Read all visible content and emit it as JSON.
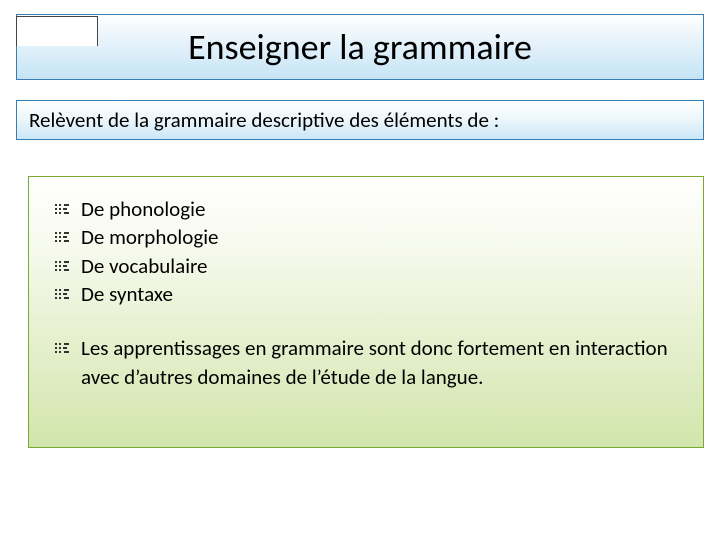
{
  "colors": {
    "title_gradient_top": "#ffffff",
    "title_gradient_bottom": "#c5e4f5",
    "title_border": "#3a7db0",
    "subtitle_gradient_top": "#ffffff",
    "subtitle_gradient_bottom": "#cbe7f6",
    "subtitle_border": "#3a7db0",
    "content_gradient_top": "#ffffff",
    "content_gradient_bottom": "#d2e5ac",
    "content_border": "#7aa833",
    "text": "#000000",
    "slide_bg": "#ffffff"
  },
  "typography": {
    "family": "Calibri",
    "title_size_pt": 28,
    "subtitle_size_pt": 16,
    "body_size_pt": 16
  },
  "layout": {
    "slide_width": 720,
    "slide_height": 540
  },
  "title": "Enseigner la grammaire",
  "subtitle": "Relèvent de la grammaire descriptive des éléments de :",
  "bullets": {
    "0": "De phonologie",
    "1": "De morphologie",
    "2": "De vocabulaire",
    "3": "De syntaxe",
    "4": "Les apprentissages en grammaire sont donc fortement en interaction avec d’autres domaines de l’étude de la langue."
  }
}
